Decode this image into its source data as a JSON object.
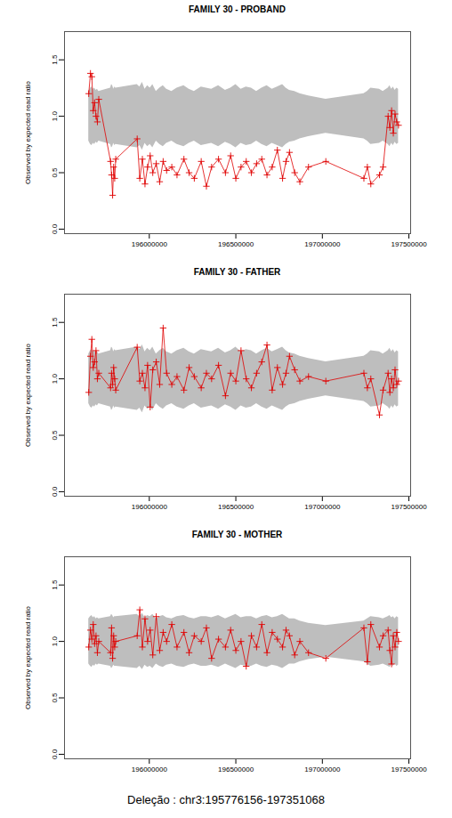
{
  "chart_data": [
    {
      "type": "line",
      "title": "FAMILY 30 - PROBAND",
      "y_label": "Observed by expected read ratio",
      "color": "#e00000",
      "marker": "plus",
      "line_style": "solid",
      "xlim": [
        195510000,
        197510000
      ],
      "xticks": [
        196000000,
        196500000,
        197000000,
        197500000
      ],
      "ylim": [
        -0.04,
        1.75
      ],
      "yticks": [
        {
          "value": 0,
          "label": "0.0"
        },
        {
          "value": 0.5,
          "label": "0.5"
        },
        {
          "value": 1,
          "label": "1.0"
        },
        {
          "value": 1.5,
          "label": "1.5"
        }
      ],
      "x": [
        195650000,
        195660000,
        195668000,
        195676000,
        195684000,
        195692000,
        195700000,
        195708000,
        195776156,
        195782000,
        195788000,
        195794000,
        195800000,
        195806000,
        195930000,
        195945000,
        195960000,
        195975000,
        195990000,
        196005000,
        196020000,
        196040000,
        196060000,
        196080000,
        196100000,
        196130000,
        196160000,
        196200000,
        196230000,
        196260000,
        196300000,
        196330000,
        196360000,
        196400000,
        196440000,
        196470000,
        196500000,
        196530000,
        196560000,
        196590000,
        196620000,
        196650000,
        196680000,
        196710000,
        196740000,
        196770000,
        196790000,
        196810000,
        196840000,
        196870000,
        196920000,
        197020000,
        197240000,
        197260000,
        197280000,
        197330000,
        197351068,
        197380000,
        197390000,
        197400000,
        197410000,
        197420000,
        197430000,
        197440000
      ],
      "values": [
        1.2,
        1.38,
        1.35,
        1.05,
        1.12,
        1.0,
        0.95,
        1.15,
        0.6,
        0.48,
        0.3,
        0.55,
        0.45,
        0.62,
        0.8,
        0.45,
        0.62,
        0.4,
        0.55,
        0.65,
        0.5,
        0.58,
        0.42,
        0.6,
        0.52,
        0.55,
        0.48,
        0.62,
        0.5,
        0.45,
        0.6,
        0.38,
        0.55,
        0.62,
        0.5,
        0.65,
        0.45,
        0.55,
        0.6,
        0.5,
        0.58,
        0.62,
        0.48,
        0.55,
        0.7,
        0.45,
        0.6,
        0.68,
        0.5,
        0.42,
        0.55,
        0.6,
        0.45,
        0.55,
        0.4,
        0.48,
        0.55,
        1.0,
        0.9,
        1.05,
        0.85,
        1.02,
        0.95,
        0.92
      ],
      "band_upper": [
        1.22,
        1.25,
        1.26,
        1.24,
        1.25,
        1.23,
        1.24,
        1.22,
        1.25,
        1.28,
        1.27,
        1.24,
        1.26,
        1.25,
        1.28,
        1.26,
        1.3,
        1.24,
        1.27,
        1.25,
        1.28,
        1.22,
        1.25,
        1.27,
        1.24,
        1.22,
        1.25,
        1.27,
        1.24,
        1.22,
        1.26,
        1.25,
        1.24,
        1.27,
        1.23,
        1.25,
        1.28,
        1.24,
        1.26,
        1.25,
        1.22,
        1.25,
        1.27,
        1.24,
        1.26,
        1.28,
        1.25,
        1.23,
        1.22,
        1.2,
        1.18,
        1.15,
        1.2,
        1.22,
        1.25,
        1.24,
        1.22,
        1.25,
        1.27,
        1.24,
        1.26,
        1.23,
        1.25,
        1.24
      ],
      "band_lower": [
        0.78,
        0.75,
        0.74,
        0.76,
        0.75,
        0.77,
        0.76,
        0.78,
        0.75,
        0.72,
        0.73,
        0.76,
        0.74,
        0.75,
        0.72,
        0.74,
        0.7,
        0.76,
        0.73,
        0.75,
        0.72,
        0.78,
        0.75,
        0.73,
        0.76,
        0.78,
        0.75,
        0.73,
        0.76,
        0.78,
        0.74,
        0.75,
        0.76,
        0.73,
        0.77,
        0.75,
        0.72,
        0.76,
        0.74,
        0.75,
        0.78,
        0.75,
        0.73,
        0.76,
        0.74,
        0.72,
        0.75,
        0.77,
        0.78,
        0.8,
        0.82,
        0.85,
        0.8,
        0.78,
        0.75,
        0.76,
        0.78,
        0.75,
        0.73,
        0.76,
        0.74,
        0.77,
        0.75,
        0.76
      ]
    },
    {
      "type": "line",
      "title": "FAMILY 30 - FATHER",
      "y_label": "Observed by expected read ratio",
      "color": "#e00000",
      "marker": "plus",
      "line_style": "solid",
      "xlim": [
        195510000,
        197510000
      ],
      "xticks": [
        196000000,
        196500000,
        197000000,
        197500000
      ],
      "ylim": [
        -0.04,
        1.75
      ],
      "yticks": [
        {
          "value": 0,
          "label": "0.0"
        },
        {
          "value": 0.5,
          "label": "0.5"
        },
        {
          "value": 1,
          "label": "1.0"
        },
        {
          "value": 1.5,
          "label": "1.5"
        }
      ],
      "x": [
        195650000,
        195660000,
        195668000,
        195676000,
        195684000,
        195692000,
        195700000,
        195708000,
        195776156,
        195782000,
        195788000,
        195794000,
        195800000,
        195806000,
        195930000,
        195945000,
        195960000,
        195975000,
        195990000,
        196005000,
        196020000,
        196040000,
        196060000,
        196080000,
        196100000,
        196130000,
        196160000,
        196200000,
        196230000,
        196260000,
        196300000,
        196330000,
        196360000,
        196400000,
        196440000,
        196470000,
        196500000,
        196530000,
        196560000,
        196590000,
        196620000,
        196650000,
        196680000,
        196710000,
        196740000,
        196770000,
        196790000,
        196810000,
        196840000,
        196870000,
        196920000,
        197020000,
        197240000,
        197260000,
        197280000,
        197330000,
        197351068,
        197380000,
        197390000,
        197400000,
        197410000,
        197420000,
        197430000,
        197440000
      ],
      "values": [
        0.88,
        1.2,
        1.35,
        1.1,
        1.15,
        1.25,
        1.0,
        1.05,
        0.92,
        1.05,
        0.95,
        1.1,
        1.0,
        0.9,
        1.28,
        0.98,
        1.05,
        0.92,
        1.12,
        0.75,
        1.08,
        1.15,
        0.95,
        1.45,
        1.05,
        0.95,
        1.02,
        0.9,
        1.1,
        1.02,
        0.92,
        1.05,
        1.0,
        1.12,
        0.85,
        1.05,
        0.98,
        1.25,
        1.0,
        0.92,
        1.05,
        1.15,
        1.3,
        0.9,
        1.1,
        0.95,
        1.05,
        1.2,
        1.08,
        0.98,
        1.02,
        0.98,
        1.05,
        0.92,
        1.0,
        0.68,
        0.9,
        1.05,
        0.88,
        1.0,
        0.92,
        1.08,
        0.95,
        0.98
      ],
      "band_upper": [
        1.22,
        1.25,
        1.26,
        1.24,
        1.25,
        1.23,
        1.24,
        1.22,
        1.25,
        1.28,
        1.27,
        1.24,
        1.26,
        1.25,
        1.28,
        1.26,
        1.3,
        1.24,
        1.27,
        1.25,
        1.28,
        1.22,
        1.25,
        1.27,
        1.24,
        1.22,
        1.25,
        1.27,
        1.24,
        1.22,
        1.26,
        1.25,
        1.24,
        1.27,
        1.23,
        1.25,
        1.28,
        1.24,
        1.26,
        1.25,
        1.22,
        1.25,
        1.27,
        1.24,
        1.26,
        1.28,
        1.25,
        1.23,
        1.22,
        1.2,
        1.18,
        1.15,
        1.2,
        1.22,
        1.25,
        1.24,
        1.22,
        1.25,
        1.27,
        1.24,
        1.26,
        1.23,
        1.25,
        1.24
      ],
      "band_lower": [
        0.78,
        0.75,
        0.74,
        0.76,
        0.75,
        0.77,
        0.76,
        0.78,
        0.75,
        0.72,
        0.73,
        0.76,
        0.74,
        0.75,
        0.72,
        0.74,
        0.7,
        0.76,
        0.73,
        0.75,
        0.72,
        0.78,
        0.75,
        0.73,
        0.76,
        0.78,
        0.75,
        0.73,
        0.76,
        0.78,
        0.74,
        0.75,
        0.76,
        0.73,
        0.77,
        0.75,
        0.72,
        0.76,
        0.74,
        0.75,
        0.78,
        0.75,
        0.73,
        0.76,
        0.74,
        0.72,
        0.75,
        0.77,
        0.78,
        0.8,
        0.82,
        0.85,
        0.8,
        0.78,
        0.75,
        0.76,
        0.78,
        0.75,
        0.73,
        0.76,
        0.74,
        0.77,
        0.75,
        0.76
      ]
    },
    {
      "type": "line",
      "title": "FAMILY 30 - MOTHER",
      "y_label": "Observed by expected read ratio",
      "color": "#e00000",
      "marker": "plus",
      "line_style": "solid",
      "xlim": [
        195510000,
        197510000
      ],
      "xticks": [
        196000000,
        196500000,
        197000000,
        197500000
      ],
      "ylim": [
        -0.04,
        1.75
      ],
      "yticks": [
        {
          "value": 0,
          "label": "0.0"
        },
        {
          "value": 0.5,
          "label": "0.5"
        },
        {
          "value": 1,
          "label": "1.0"
        },
        {
          "value": 1.5,
          "label": "1.5"
        }
      ],
      "x": [
        195650000,
        195660000,
        195668000,
        195676000,
        195684000,
        195692000,
        195700000,
        195708000,
        195776156,
        195782000,
        195788000,
        195794000,
        195800000,
        195806000,
        195930000,
        195945000,
        195960000,
        195975000,
        195990000,
        196005000,
        196020000,
        196040000,
        196060000,
        196080000,
        196100000,
        196130000,
        196160000,
        196200000,
        196230000,
        196260000,
        196300000,
        196330000,
        196360000,
        196400000,
        196440000,
        196470000,
        196500000,
        196530000,
        196560000,
        196590000,
        196620000,
        196650000,
        196680000,
        196710000,
        196740000,
        196770000,
        196790000,
        196810000,
        196840000,
        196870000,
        196920000,
        197020000,
        197240000,
        197260000,
        197280000,
        197330000,
        197351068,
        197380000,
        197390000,
        197400000,
        197410000,
        197420000,
        197430000,
        197440000
      ],
      "values": [
        0.95,
        1.1,
        1.02,
        1.15,
        0.98,
        1.05,
        0.9,
        1.0,
        0.9,
        1.12,
        0.85,
        1.05,
        0.95,
        1.0,
        1.05,
        1.28,
        0.95,
        1.2,
        1.0,
        1.1,
        0.88,
        1.22,
        0.92,
        1.08,
        1.0,
        1.15,
        0.95,
        1.08,
        0.9,
        1.05,
        1.0,
        1.12,
        0.85,
        1.02,
        0.95,
        1.1,
        0.92,
        1.0,
        0.78,
        1.05,
        0.95,
        1.15,
        0.9,
        1.08,
        1.02,
        0.95,
        1.1,
        1.05,
        0.88,
        1.0,
        0.9,
        0.85,
        1.12,
        0.82,
        1.15,
        0.95,
        1.05,
        1.1,
        0.92,
        0.8,
        1.05,
        0.95,
        1.08,
        1.0
      ],
      "band_upper": [
        1.2,
        1.22,
        1.23,
        1.21,
        1.22,
        1.2,
        1.21,
        1.2,
        1.22,
        1.24,
        1.23,
        1.21,
        1.22,
        1.22,
        1.24,
        1.22,
        1.25,
        1.21,
        1.23,
        1.22,
        1.24,
        1.2,
        1.22,
        1.23,
        1.21,
        1.2,
        1.22,
        1.23,
        1.21,
        1.2,
        1.22,
        1.22,
        1.21,
        1.23,
        1.2,
        1.22,
        1.24,
        1.21,
        1.22,
        1.22,
        1.2,
        1.22,
        1.23,
        1.21,
        1.22,
        1.24,
        1.22,
        1.2,
        1.2,
        1.18,
        1.16,
        1.14,
        1.18,
        1.2,
        1.22,
        1.21,
        1.2,
        1.22,
        1.23,
        1.21,
        1.22,
        1.2,
        1.22,
        1.21
      ],
      "band_lower": [
        0.8,
        0.78,
        0.77,
        0.79,
        0.78,
        0.8,
        0.79,
        0.8,
        0.78,
        0.76,
        0.77,
        0.79,
        0.78,
        0.78,
        0.76,
        0.78,
        0.75,
        0.79,
        0.77,
        0.78,
        0.76,
        0.8,
        0.78,
        0.77,
        0.79,
        0.8,
        0.78,
        0.77,
        0.79,
        0.8,
        0.78,
        0.78,
        0.79,
        0.77,
        0.8,
        0.78,
        0.76,
        0.79,
        0.78,
        0.78,
        0.8,
        0.78,
        0.77,
        0.79,
        0.78,
        0.76,
        0.78,
        0.8,
        0.8,
        0.82,
        0.84,
        0.86,
        0.82,
        0.8,
        0.78,
        0.79,
        0.8,
        0.78,
        0.77,
        0.79,
        0.78,
        0.8,
        0.78,
        0.79
      ]
    }
  ],
  "caption": "Deleção : chr3:195776156-197351068"
}
